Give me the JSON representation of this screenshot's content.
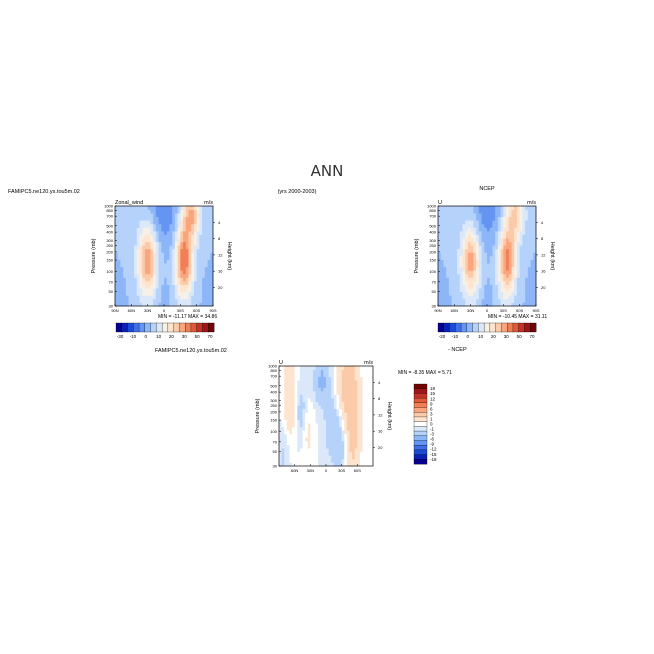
{
  "page": {
    "title": "ANN",
    "case_label": "FAMIPC5.ne120.ys.tou5m.02",
    "years_label": "(yrs 2000-2003)"
  },
  "palettes": {
    "wind": [
      "#08008e",
      "#0a22b4",
      "#1b4bd3",
      "#3f6fe6",
      "#6595f2",
      "#8db6f8",
      "#b5d2fb",
      "#dbe8fa",
      "#f7f0e6",
      "#fde4cf",
      "#fbcaa8",
      "#f9a57d",
      "#f17e56",
      "#e0583a",
      "#c23227",
      "#9c1518",
      "#720404"
    ],
    "diff": [
      "#08008e",
      "#0a22b4",
      "#1b4bd3",
      "#3f6fe6",
      "#6595f2",
      "#8db6f8",
      "#b5d2fb",
      "#dbe8fa",
      "#ffffff",
      "#fde4cf",
      "#fbcaa8",
      "#f9a57d",
      "#f17e56",
      "#e0583a",
      "#c23227",
      "#9c1518",
      "#720404"
    ]
  },
  "chart_data": [
    {
      "type": "heatmap",
      "id": "model",
      "field": "U",
      "left_label": "Zonal_wind",
      "center_label": "",
      "units": "m/s",
      "ylabel": "Pressure (mb)",
      "ylabel_right": "Height (km)",
      "x_ticks": [
        "90N",
        "60N",
        "30N",
        "0",
        "30S",
        "60S",
        "90S"
      ],
      "x_range": [
        90,
        -90
      ],
      "pressure_ticks": [
        "30",
        "50",
        "70",
        "100",
        "150",
        "200",
        "250",
        "300",
        "400",
        "500",
        "700",
        "850",
        "1000"
      ],
      "height_ticks": [
        "20",
        "16",
        "12",
        "8",
        "4"
      ],
      "y_range": [
        1000,
        30
      ],
      "min": -11.17,
      "max": 34.86,
      "stats_text": "MIN = -11.17   MAX = 34.86",
      "colorbar_labels": [
        "-30",
        "-10",
        "0",
        "10",
        "20",
        "30",
        "50",
        "70"
      ],
      "colorbar_levels": [
        -40,
        -30,
        -20,
        -15,
        -10,
        -5,
        0,
        5,
        10,
        15,
        20,
        25,
        30,
        40,
        50,
        60,
        70,
        80
      ],
      "jets": [
        {
          "lat": 30,
          "p": 200,
          "u": 29,
          "wlat": 12,
          "wlogp": 0.36
        },
        {
          "lat": -37,
          "p": 200,
          "u": 34,
          "wlat": 11,
          "wlogp": 0.36
        },
        {
          "lat": -50,
          "p": 40,
          "u": 24,
          "wlat": 12,
          "wlogp": 0.26
        }
      ],
      "easterly": {
        "lat": 0,
        "p": 30,
        "u": -11,
        "wlat": 20,
        "wlogp": 0.5
      },
      "surface_easterlies": [
        {
          "lat": 0,
          "u": -4
        },
        {
          "lat": 80,
          "u": -2
        },
        {
          "lat": -80,
          "u": -2
        }
      ]
    },
    {
      "type": "heatmap",
      "id": "obs",
      "field": "U",
      "left_label": "U",
      "center_label": "NCEP",
      "units": "m/s",
      "ylabel": "Pressure (mb)",
      "ylabel_right": "Height (km)",
      "x_ticks": [
        "90N",
        "60N",
        "30N",
        "0",
        "30S",
        "60S",
        "90S"
      ],
      "x_range": [
        90,
        -90
      ],
      "pressure_ticks": [
        "30",
        "50",
        "70",
        "100",
        "150",
        "200",
        "250",
        "300",
        "400",
        "500",
        "700",
        "850",
        "1000"
      ],
      "height_ticks": [
        "20",
        "16",
        "12",
        "8",
        "4"
      ],
      "y_range": [
        1000,
        30
      ],
      "min": -10.45,
      "max": 31.11,
      "stats_text": "MIN = -10.45   MAX = 31.11",
      "colorbar_labels": [
        "-20",
        "-10",
        "0",
        "10",
        "20",
        "30",
        "50",
        "70"
      ],
      "colorbar_levels": [
        -40,
        -30,
        -20,
        -15,
        -10,
        -5,
        0,
        5,
        10,
        15,
        20,
        25,
        30,
        40,
        50,
        60,
        70,
        80
      ],
      "jets": [
        {
          "lat": 30,
          "p": 200,
          "u": 26,
          "wlat": 12,
          "wlogp": 0.36
        },
        {
          "lat": -37,
          "p": 200,
          "u": 31,
          "wlat": 11,
          "wlogp": 0.36
        },
        {
          "lat": -52,
          "p": 40,
          "u": 20,
          "wlat": 12,
          "wlogp": 0.26
        }
      ],
      "easterly": {
        "lat": 0,
        "p": 30,
        "u": -10,
        "wlat": 20,
        "wlogp": 0.5
      },
      "surface_easterlies": [
        {
          "lat": 0,
          "u": -4
        },
        {
          "lat": 80,
          "u": -2
        },
        {
          "lat": -80,
          "u": -2
        }
      ]
    },
    {
      "type": "heatmap",
      "id": "diff",
      "field": "U",
      "left_label": "U",
      "center_label": "",
      "title": "FAMIPC5.ne120.ys.tou5m.02",
      "units": "m/s",
      "ylabel": "Pressure (mb)",
      "ylabel_right": "Height (km)",
      "x_ticks": [
        "60N",
        "30N",
        "0",
        "30S",
        "60S"
      ],
      "x_range": [
        90,
        -90
      ],
      "pressure_ticks": [
        "30",
        "50",
        "70",
        "100",
        "150",
        "200",
        "250",
        "300",
        "400",
        "500",
        "700",
        "850",
        "1000"
      ],
      "height_ticks": [
        "20",
        "16",
        "12",
        "8",
        "4"
      ],
      "y_range": [
        1000,
        30
      ],
      "min": -8.35,
      "max": 5.71,
      "stats_text": "MIN = -8.35   MAX = 5.71",
      "minus_label": "- NCEP",
      "colorbar_labels": [
        "18",
        "15",
        "12",
        "9",
        "6",
        "3",
        "1",
        "0",
        "-1",
        "-3",
        "-6",
        "-9",
        "-12",
        "-15",
        "-18"
      ],
      "colorbar_levels": [
        -21,
        -18,
        -15,
        -12,
        -9,
        -6,
        -3,
        -1,
        0,
        1,
        3,
        6,
        9,
        12,
        15,
        18,
        21
      ],
      "blobs": [
        {
          "lat": -42,
          "p": 60,
          "u": 4.5,
          "wlat": 14,
          "wlogp": 0.4
        },
        {
          "lat": -52,
          "p": 400,
          "u": 3.5,
          "wlat": 10,
          "wlogp": 0.5
        },
        {
          "lat": 70,
          "p": 100,
          "u": 2.5,
          "wlat": 10,
          "wlogp": 0.5
        },
        {
          "lat": 35,
          "p": 300,
          "u": 1.5,
          "wlat": 8,
          "wlogp": 0.3
        },
        {
          "lat": 8,
          "p": 50,
          "u": -3.5,
          "wlat": 10,
          "wlogp": 0.25
        },
        {
          "lat": -12,
          "p": 250,
          "u": -2.5,
          "wlat": 10,
          "wlogp": 0.35
        },
        {
          "lat": 48,
          "p": 150,
          "u": -2.0,
          "wlat": 8,
          "wlogp": 0.3
        },
        {
          "lat": -28,
          "p": 500,
          "u": -2.0,
          "wlat": 8,
          "wlogp": 0.3
        },
        {
          "lat": 80,
          "p": 600,
          "u": -1.5,
          "wlat": 8,
          "wlogp": 0.4
        }
      ]
    }
  ]
}
